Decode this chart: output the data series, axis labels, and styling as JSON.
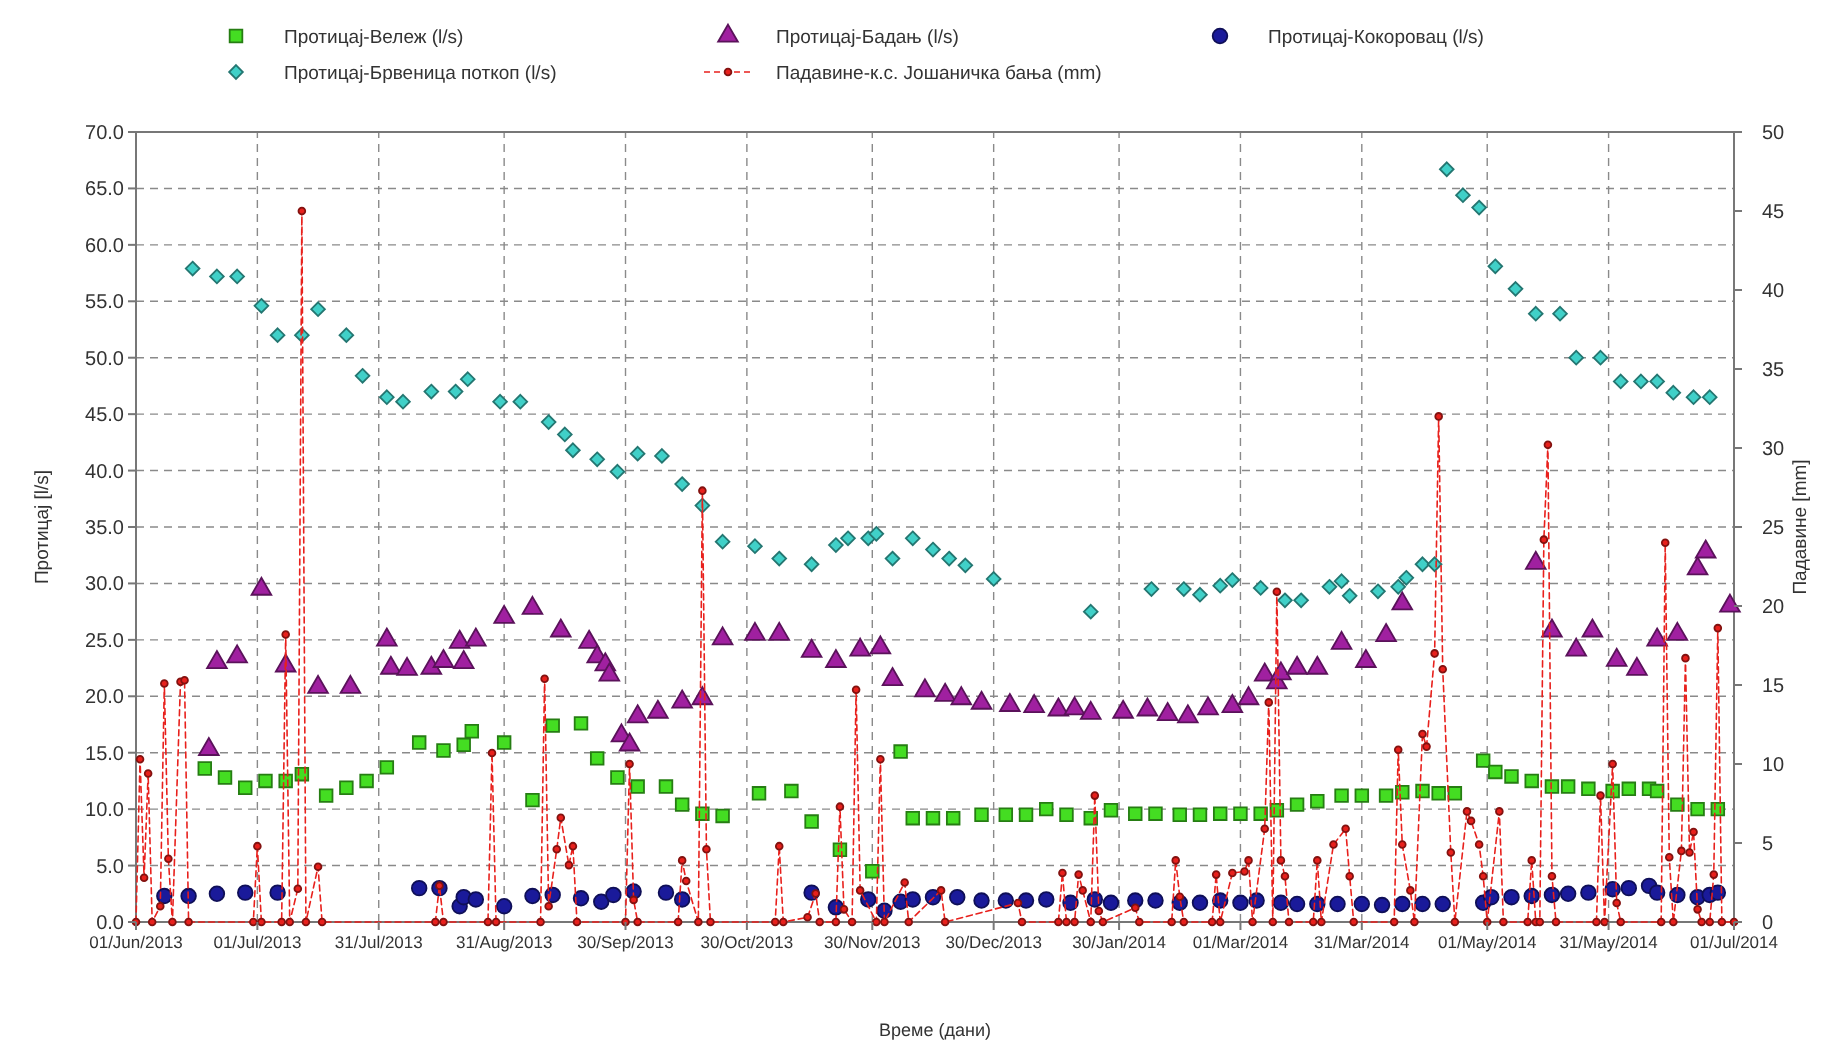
{
  "chart_data": {
    "type": "scatter",
    "xlabel": "Време (дани)",
    "ylabel": "Протицај [l/s]",
    "y2label": "Падавине [mm]",
    "legend": "top",
    "grid": true,
    "xlim": [
      "2013-06-01",
      "2014-07-01"
    ],
    "xticks": [
      {
        "value": "2013-06-01",
        "label": "01/Jun/2013"
      },
      {
        "value": "2013-07-01",
        "label": "01/Jul/2013"
      },
      {
        "value": "2013-07-31",
        "label": "31/Jul/2013"
      },
      {
        "value": "2013-08-31",
        "label": "31/Aug/2013"
      },
      {
        "value": "2013-09-30",
        "label": "30/Sep/2013"
      },
      {
        "value": "2013-10-30",
        "label": "30/Oct/2013"
      },
      {
        "value": "2013-11-30",
        "label": "30/Nov/2013"
      },
      {
        "value": "2013-12-30",
        "label": "30/Dec/2013"
      },
      {
        "value": "2014-01-30",
        "label": "30/Jan/2014"
      },
      {
        "value": "2014-03-01",
        "label": "01/Mar/2014"
      },
      {
        "value": "2014-03-31",
        "label": "31/Mar/2014"
      },
      {
        "value": "2014-05-01",
        "label": "01/May/2014"
      },
      {
        "value": "2014-05-31",
        "label": "31/May/2014"
      },
      {
        "value": "2014-07-01",
        "label": "01/Jul/2014"
      }
    ],
    "ylim": [
      0,
      70
    ],
    "yticks": [
      {
        "value": 0,
        "label": "0.0"
      },
      {
        "value": 5,
        "label": "5.0"
      },
      {
        "value": 10,
        "label": "10.0"
      },
      {
        "value": 15,
        "label": "15.0"
      },
      {
        "value": 20,
        "label": "20.0"
      },
      {
        "value": 25,
        "label": "25.0"
      },
      {
        "value": 30,
        "label": "30.0"
      },
      {
        "value": 35,
        "label": "35.0"
      },
      {
        "value": 40,
        "label": "40.0"
      },
      {
        "value": 45,
        "label": "45.0"
      },
      {
        "value": 50,
        "label": "50.0"
      },
      {
        "value": 55,
        "label": "55.0"
      },
      {
        "value": 60,
        "label": "60.0"
      },
      {
        "value": 65,
        "label": "65.0"
      },
      {
        "value": 70,
        "label": "70.0"
      }
    ],
    "y2lim": [
      0,
      50
    ],
    "y2ticks": [
      0,
      5,
      10,
      15,
      20,
      25,
      30,
      35,
      40,
      45,
      50
    ],
    "series": [
      {
        "name": "Протицај-Вележ (l/s)",
        "marker": "square",
        "color": "#44dd22",
        "x": [
          "2013-06-18",
          "2013-06-23",
          "2013-06-28",
          "2013-07-03",
          "2013-07-08",
          "2013-07-12",
          "2013-07-18",
          "2013-07-23",
          "2013-07-28",
          "2013-08-02",
          "2013-08-10",
          "2013-08-16",
          "2013-08-21",
          "2013-08-23",
          "2013-08-31",
          "2013-09-07",
          "2013-09-12",
          "2013-09-19",
          "2013-09-23",
          "2013-09-28",
          "2013-10-03",
          "2013-10-10",
          "2013-10-14",
          "2013-10-19",
          "2013-10-24",
          "2013-11-02",
          "2013-11-10",
          "2013-11-15",
          "2013-11-22",
          "2013-11-30",
          "2013-12-07",
          "2013-12-10",
          "2013-12-15",
          "2013-12-20",
          "2013-12-27",
          "2014-01-02",
          "2014-01-07",
          "2014-01-12",
          "2014-01-17",
          "2014-01-23",
          "2014-01-28",
          "2014-02-03",
          "2014-02-08",
          "2014-02-14",
          "2014-02-19",
          "2014-02-24",
          "2014-03-01",
          "2014-03-06",
          "2014-03-10",
          "2014-03-15",
          "2014-03-20",
          "2014-03-26",
          "2014-03-31",
          "2014-04-06",
          "2014-04-10",
          "2014-04-15",
          "2014-04-19",
          "2014-04-23",
          "2014-04-30",
          "2014-05-03",
          "2014-05-07",
          "2014-05-12",
          "2014-05-17",
          "2014-05-21",
          "2014-05-26",
          "2014-06-01",
          "2014-06-05",
          "2014-06-10",
          "2014-06-12",
          "2014-06-17",
          "2014-06-22",
          "2014-06-27"
        ],
        "values": [
          13.6,
          12.8,
          11.9,
          12.5,
          12.5,
          13.1,
          11.2,
          11.9,
          12.5,
          13.7,
          15.9,
          15.2,
          15.7,
          16.9,
          15.9,
          10.8,
          17.4,
          17.6,
          14.5,
          12.8,
          12.0,
          12.0,
          10.4,
          9.6,
          9.4,
          11.4,
          11.6,
          8.9,
          6.4,
          4.5,
          15.1,
          9.2,
          9.2,
          9.2,
          9.5,
          9.5,
          9.5,
          10.0,
          9.5,
          9.2,
          9.9,
          9.6,
          9.6,
          9.5,
          9.5,
          9.6,
          9.6,
          9.6,
          9.9,
          10.4,
          10.7,
          11.2,
          11.2,
          11.2,
          11.5,
          11.6,
          11.4,
          11.4,
          14.3,
          13.3,
          12.9,
          12.5,
          12.0,
          12.0,
          11.8,
          11.6,
          11.8,
          11.8,
          11.6,
          10.4,
          10.0,
          10.0
        ]
      },
      {
        "name": "Протицај-Бадањ (l/s)",
        "marker": "triangle",
        "color": "#a020a0",
        "x": [
          "2013-06-19",
          "2013-06-21",
          "2013-06-26",
          "2013-07-02",
          "2013-07-08",
          "2013-07-16",
          "2013-07-24",
          "2013-08-02",
          "2013-08-03",
          "2013-08-07",
          "2013-08-13",
          "2013-08-16",
          "2013-08-20",
          "2013-08-21",
          "2013-08-24",
          "2013-08-31",
          "2013-09-07",
          "2013-09-14",
          "2013-09-21",
          "2013-09-23",
          "2013-09-25",
          "2013-09-26",
          "2013-09-29",
          "2013-10-01",
          "2013-10-03",
          "2013-10-08",
          "2013-10-14",
          "2013-10-19",
          "2013-10-24",
          "2013-11-01",
          "2013-11-07",
          "2013-11-15",
          "2013-11-21",
          "2013-11-27",
          "2013-12-02",
          "2013-12-05",
          "2013-12-13",
          "2013-12-18",
          "2013-12-22",
          "2013-12-27",
          "2014-01-03",
          "2014-01-09",
          "2014-01-15",
          "2014-01-19",
          "2014-01-23",
          "2014-01-31",
          "2014-02-06",
          "2014-02-11",
          "2014-02-16",
          "2014-02-21",
          "2014-02-27",
          "2014-03-03",
          "2014-03-07",
          "2014-03-10",
          "2014-03-11",
          "2014-03-15",
          "2014-03-20",
          "2014-03-26",
          "2014-04-01",
          "2014-04-06",
          "2014-04-10",
          "2014-05-13",
          "2014-05-17",
          "2014-05-23",
          "2014-05-27",
          "2014-06-02",
          "2014-06-07",
          "2014-06-12",
          "2014-06-17",
          "2014-06-22",
          "2014-06-24",
          "2014-06-30"
        ],
        "values": [
          15.3,
          23.0,
          23.5,
          29.5,
          22.7,
          20.8,
          20.8,
          25.0,
          22.5,
          22.4,
          22.5,
          23.1,
          24.8,
          23.0,
          25.0,
          27.0,
          27.8,
          25.8,
          24.8,
          23.5,
          22.8,
          21.9,
          16.5,
          15.7,
          18.2,
          18.6,
          19.5,
          19.8,
          25.1,
          25.5,
          25.5,
          24.0,
          23.1,
          24.1,
          24.3,
          21.5,
          20.5,
          20.1,
          19.8,
          19.4,
          19.2,
          19.1,
          18.8,
          18.9,
          18.5,
          18.6,
          18.8,
          18.4,
          18.2,
          18.9,
          19.1,
          19.8,
          21.9,
          21.2,
          22.0,
          22.5,
          22.5,
          24.7,
          23.1,
          25.4,
          28.2,
          31.8,
          25.8,
          24.1,
          25.8,
          23.2,
          22.4,
          25.0,
          25.5,
          31.3,
          32.8,
          28.0
        ]
      },
      {
        "name": "Протицај-Кокоровац (l/s)",
        "marker": "circle",
        "color": "#1a1a9a",
        "x": [
          "2013-06-08",
          "2013-06-14",
          "2013-06-21",
          "2013-06-28",
          "2013-07-06",
          "2013-08-10",
          "2013-08-15",
          "2013-08-20",
          "2013-08-21",
          "2013-08-24",
          "2013-08-31",
          "2013-09-07",
          "2013-09-12",
          "2013-09-19",
          "2013-09-24",
          "2013-09-27",
          "2013-10-02",
          "2013-10-10",
          "2013-10-14",
          "2013-11-15",
          "2013-11-21",
          "2013-11-29",
          "2013-12-03",
          "2013-12-07",
          "2013-12-10",
          "2013-12-15",
          "2013-12-21",
          "2013-12-27",
          "2014-01-02",
          "2014-01-07",
          "2014-01-12",
          "2014-01-18",
          "2014-01-24",
          "2014-01-28",
          "2014-02-03",
          "2014-02-08",
          "2014-02-14",
          "2014-02-19",
          "2014-02-24",
          "2014-03-01",
          "2014-03-05",
          "2014-03-11",
          "2014-03-15",
          "2014-03-20",
          "2014-03-25",
          "2014-03-31",
          "2014-04-05",
          "2014-04-10",
          "2014-04-15",
          "2014-04-20",
          "2014-04-30",
          "2014-05-02",
          "2014-05-07",
          "2014-05-12",
          "2014-05-17",
          "2014-05-21",
          "2014-05-26",
          "2014-06-01",
          "2014-06-05",
          "2014-06-10",
          "2014-06-12",
          "2014-06-17",
          "2014-06-22",
          "2014-06-25",
          "2014-06-27"
        ],
        "values": [
          2.3,
          2.3,
          2.5,
          2.6,
          2.6,
          3.0,
          3.0,
          1.4,
          2.2,
          2.0,
          1.4,
          2.3,
          2.4,
          2.1,
          1.8,
          2.4,
          2.7,
          2.6,
          2.0,
          2.6,
          1.3,
          2.0,
          1.0,
          1.8,
          2.0,
          2.2,
          2.2,
          1.9,
          1.9,
          1.9,
          2.0,
          1.7,
          2.0,
          1.7,
          1.9,
          1.9,
          1.7,
          1.7,
          1.9,
          1.7,
          1.9,
          1.7,
          1.6,
          1.6,
          1.6,
          1.6,
          1.5,
          1.6,
          1.6,
          1.6,
          1.7,
          2.2,
          2.2,
          2.3,
          2.4,
          2.5,
          2.6,
          2.9,
          3.0,
          3.2,
          2.6,
          2.4,
          2.2,
          2.4,
          2.6
        ]
      },
      {
        "name": "Протицај-Брвеница поткоп (l/s)",
        "marker": "diamond",
        "color": "#40d0c8",
        "x": [
          "2013-06-15",
          "2013-06-21",
          "2013-06-26",
          "2013-07-02",
          "2013-07-06",
          "2013-07-12",
          "2013-07-16",
          "2013-07-23",
          "2013-07-27",
          "2013-08-02",
          "2013-08-06",
          "2013-08-13",
          "2013-08-19",
          "2013-08-22",
          "2013-08-30",
          "2013-09-04",
          "2013-09-11",
          "2013-09-15",
          "2013-09-17",
          "2013-09-23",
          "2013-09-28",
          "2013-10-03",
          "2013-10-09",
          "2013-10-14",
          "2013-10-19",
          "2013-10-24",
          "2013-11-01",
          "2013-11-07",
          "2013-11-15",
          "2013-11-21",
          "2013-11-24",
          "2013-11-29",
          "2013-12-01",
          "2013-12-05",
          "2013-12-10",
          "2013-12-15",
          "2013-12-19",
          "2013-12-23",
          "2013-12-30",
          "2014-01-23",
          "2014-02-07",
          "2014-02-15",
          "2014-02-19",
          "2014-02-24",
          "2014-02-27",
          "2014-03-06",
          "2014-03-12",
          "2014-03-16",
          "2014-03-23",
          "2014-03-26",
          "2014-03-28",
          "2014-04-04",
          "2014-04-09",
          "2014-04-11",
          "2014-04-15",
          "2014-04-18",
          "2014-04-21",
          "2014-04-25",
          "2014-04-29",
          "2014-05-03",
          "2014-05-08",
          "2014-05-13",
          "2014-05-19",
          "2014-05-23",
          "2014-05-29",
          "2014-06-03",
          "2014-06-08",
          "2014-06-12",
          "2014-06-16",
          "2014-06-21",
          "2014-06-25"
        ],
        "values": [
          57.9,
          57.2,
          57.2,
          54.6,
          52.0,
          52.0,
          54.3,
          52.0,
          48.4,
          46.5,
          46.1,
          47.0,
          47.0,
          48.1,
          46.1,
          46.1,
          44.3,
          43.2,
          41.8,
          41.0,
          39.9,
          41.5,
          41.3,
          38.8,
          36.9,
          33.7,
          33.3,
          32.2,
          31.7,
          33.4,
          34.0,
          34.0,
          34.4,
          32.2,
          34.0,
          33.0,
          32.2,
          31.6,
          30.4,
          27.5,
          29.5,
          29.5,
          29.0,
          29.8,
          30.3,
          29.6,
          28.5,
          28.5,
          29.7,
          30.2,
          28.9,
          29.3,
          29.7,
          30.5,
          31.7,
          31.7,
          66.7,
          64.4,
          63.3,
          58.1,
          56.1,
          53.9,
          53.9,
          50.0,
          50.0,
          47.9,
          47.9,
          47.9,
          46.9,
          46.5,
          46.5
        ]
      },
      {
        "name": "Падавине-к.с. Јошаничка бања (mm)",
        "type": "line",
        "axis": "y2",
        "marker": "circle",
        "line_style": "dashed",
        "color": "#e8201c",
        "x": [
          "2013-06-01",
          "2013-06-02",
          "2013-06-03",
          "2013-06-04",
          "2013-06-05",
          "2013-06-07",
          "2013-06-08",
          "2013-06-09",
          "2013-06-10",
          "2013-06-12",
          "2013-06-13",
          "2013-06-14",
          "2013-06-30",
          "2013-07-01",
          "2013-07-02",
          "2013-07-07",
          "2013-07-08",
          "2013-07-09",
          "2013-07-11",
          "2013-07-12",
          "2013-07-13",
          "2013-07-16",
          "2013-07-17",
          "2013-08-14",
          "2013-08-15",
          "2013-08-16",
          "2013-08-27",
          "2013-08-28",
          "2013-08-29",
          "2013-09-09",
          "2013-09-10",
          "2013-09-11",
          "2013-09-13",
          "2013-09-14",
          "2013-09-16",
          "2013-09-17",
          "2013-09-18",
          "2013-09-30",
          "2013-10-01",
          "2013-10-02",
          "2013-10-03",
          "2013-10-13",
          "2013-10-14",
          "2013-10-15",
          "2013-10-18",
          "2013-10-19",
          "2013-10-20",
          "2013-10-21",
          "2013-11-06",
          "2013-11-07",
          "2013-11-08",
          "2013-11-14",
          "2013-11-16",
          "2013-11-17",
          "2013-11-21",
          "2013-11-22",
          "2013-11-23",
          "2013-11-25",
          "2013-11-26",
          "2013-11-27",
          "2013-12-01",
          "2013-12-02",
          "2013-12-03",
          "2013-12-08",
          "2013-12-09",
          "2013-12-17",
          "2013-12-18",
          "2014-01-05",
          "2014-01-06",
          "2014-01-15",
          "2014-01-16",
          "2014-01-17",
          "2014-01-19",
          "2014-01-20",
          "2014-01-21",
          "2014-01-23",
          "2014-01-24",
          "2014-01-25",
          "2014-01-26",
          "2014-02-03",
          "2014-02-04",
          "2014-02-12",
          "2014-02-13",
          "2014-02-14",
          "2014-02-15",
          "2014-02-22",
          "2014-02-23",
          "2014-02-24",
          "2014-02-27",
          "2014-03-02",
          "2014-03-03",
          "2014-03-04",
          "2014-03-07",
          "2014-03-08",
          "2014-03-09",
          "2014-03-10",
          "2014-03-11",
          "2014-03-12",
          "2014-03-13",
          "2014-03-19",
          "2014-03-20",
          "2014-03-21",
          "2014-03-24",
          "2014-03-27",
          "2014-03-28",
          "2014-03-29",
          "2014-04-08",
          "2014-04-09",
          "2014-04-10",
          "2014-04-12",
          "2014-04-13",
          "2014-04-15",
          "2014-04-16",
          "2014-04-18",
          "2014-04-19",
          "2014-04-20",
          "2014-04-22",
          "2014-04-23",
          "2014-04-26",
          "2014-04-27",
          "2014-04-29",
          "2014-04-30",
          "2014-05-01",
          "2014-05-04",
          "2014-05-05",
          "2014-05-11",
          "2014-05-12",
          "2014-05-13",
          "2014-05-14",
          "2014-05-15",
          "2014-05-16",
          "2014-05-17",
          "2014-05-18",
          "2014-05-28",
          "2014-05-29",
          "2014-05-30",
          "2014-06-01",
          "2014-06-02",
          "2014-06-03",
          "2014-06-13",
          "2014-06-14",
          "2014-06-15",
          "2014-06-16",
          "2014-06-18",
          "2014-06-19",
          "2014-06-20",
          "2014-06-21",
          "2014-06-22",
          "2014-06-23",
          "2014-06-25",
          "2014-06-26",
          "2014-06-27",
          "2014-06-28",
          "2014-07-01"
        ],
        "values": [
          0,
          10.3,
          2.8,
          9.4,
          0,
          1.0,
          15.1,
          4.0,
          0,
          15.2,
          15.3,
          0,
          0,
          4.8,
          0,
          0,
          18.2,
          0,
          2.1,
          45.0,
          0,
          3.5,
          0,
          0,
          2.3,
          0,
          0,
          10.7,
          0,
          0,
          15.4,
          1.0,
          4.6,
          6.6,
          3.6,
          4.8,
          0,
          0,
          10.0,
          1.4,
          0,
          0,
          3.9,
          2.6,
          0,
          27.3,
          4.6,
          0,
          0,
          4.8,
          0,
          0.3,
          1.8,
          0,
          0,
          7.3,
          0.8,
          0,
          14.7,
          2.0,
          0,
          10.3,
          0,
          2.5,
          0,
          2.0,
          0,
          1.2,
          0,
          0,
          3.1,
          0,
          0,
          3.0,
          2.0,
          0,
          8.0,
          0.7,
          0,
          0.9,
          0,
          0,
          3.9,
          1.6,
          0,
          0,
          3.0,
          0,
          3.1,
          3.2,
          3.9,
          0,
          5.9,
          13.9,
          0,
          20.9,
          3.9,
          2.9,
          0,
          0,
          3.9,
          0,
          4.9,
          5.9,
          2.9,
          0,
          0,
          10.9,
          4.9,
          2.0,
          0,
          11.9,
          11.1,
          17.0,
          32.0,
          16.0,
          4.4,
          0,
          7.0,
          6.4,
          4.9,
          2.9,
          0,
          7.0,
          0,
          0,
          3.9,
          0,
          0,
          24.2,
          30.2,
          2.9,
          0,
          0,
          8.0,
          0,
          10.0,
          1.2,
          0,
          0,
          24.0,
          4.1,
          0,
          4.5,
          16.7,
          4.4,
          5.7,
          0.8,
          0,
          0,
          3.0,
          18.6,
          0,
          0
        ]
      }
    ]
  }
}
